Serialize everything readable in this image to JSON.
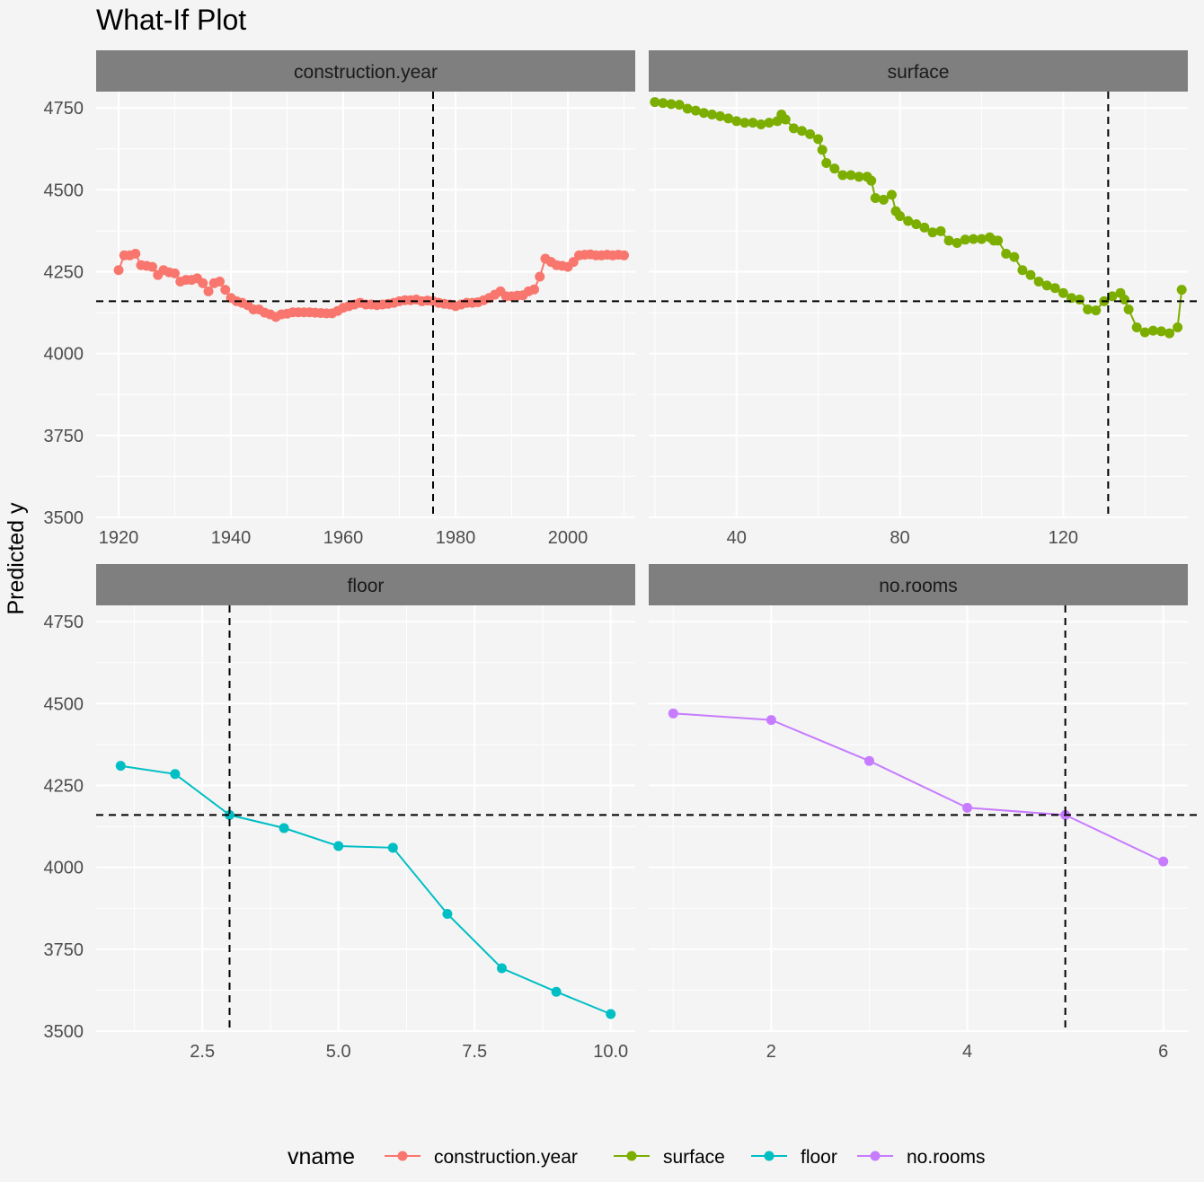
{
  "title": "What-If Plot",
  "ylabel": "Predicted y",
  "legend": {
    "title": "vname"
  },
  "reference": {
    "y": 4160
  },
  "chart_data": {
    "type": "line",
    "title": "What-If Plot",
    "ylabel": "Predicted y",
    "ylim": [
      3500,
      4800
    ],
    "yticks": [
      3500,
      3750,
      4000,
      4250,
      4500,
      4750
    ],
    "grid": true,
    "legend_position": "bottom",
    "reference_y": 4160,
    "facets": [
      {
        "name": "construction.year",
        "color": "#F8766D",
        "xlim": [
          1916,
          2012
        ],
        "xticks": [
          1920,
          1940,
          1960,
          1980,
          2000
        ],
        "tick_labels": [
          "1920",
          "1940",
          "1960",
          "1980",
          "2000"
        ],
        "reference_x": 1976,
        "x": [
          1920,
          1921,
          1922,
          1923,
          1924,
          1925,
          1926,
          1927,
          1928,
          1929,
          1930,
          1931,
          1932,
          1933,
          1934,
          1935,
          1936,
          1937,
          1938,
          1939,
          1940,
          1941,
          1942,
          1943,
          1944,
          1945,
          1946,
          1947,
          1948,
          1949,
          1950,
          1951,
          1952,
          1953,
          1954,
          1955,
          1956,
          1957,
          1958,
          1959,
          1960,
          1961,
          1962,
          1963,
          1964,
          1965,
          1966,
          1967,
          1968,
          1969,
          1970,
          1971,
          1972,
          1973,
          1974,
          1975,
          1976,
          1977,
          1978,
          1979,
          1980,
          1981,
          1982,
          1983,
          1984,
          1985,
          1986,
          1987,
          1988,
          1989,
          1990,
          1991,
          1992,
          1993,
          1994,
          1995,
          1996,
          1997,
          1998,
          1999,
          2000,
          2001,
          2002,
          2003,
          2004,
          2005,
          2006,
          2007,
          2008,
          2009,
          2010
        ],
        "y": [
          4255,
          4300,
          4300,
          4305,
          4270,
          4268,
          4265,
          4240,
          4255,
          4248,
          4245,
          4220,
          4225,
          4225,
          4230,
          4215,
          4190,
          4215,
          4220,
          4195,
          4170,
          4160,
          4155,
          4148,
          4135,
          4135,
          4125,
          4120,
          4112,
          4120,
          4122,
          4126,
          4126,
          4126,
          4126,
          4125,
          4124,
          4123,
          4123,
          4130,
          4140,
          4145,
          4150,
          4155,
          4150,
          4150,
          4148,
          4150,
          4152,
          4155,
          4160,
          4163,
          4163,
          4165,
          4160,
          4162,
          4160,
          4155,
          4152,
          4150,
          4145,
          4150,
          4155,
          4155,
          4157,
          4163,
          4170,
          4180,
          4190,
          4175,
          4175,
          4177,
          4178,
          4190,
          4196,
          4235,
          4290,
          4280,
          4270,
          4268,
          4265,
          4280,
          4300,
          4302,
          4303,
          4300,
          4300,
          4302,
          4300,
          4302,
          4300
        ]
      },
      {
        "name": "surface",
        "color": "#7CAE00",
        "xlim": [
          18.5,
          150.5
        ],
        "xticks": [
          40,
          80,
          120
        ],
        "tick_labels": [
          "40",
          "80",
          "120"
        ],
        "reference_x": 131,
        "x": [
          20,
          22,
          24,
          26,
          28,
          30,
          32,
          34,
          36,
          38,
          40,
          42,
          44,
          46,
          48,
          50,
          51,
          52,
          54,
          56,
          58,
          60,
          61,
          62,
          64,
          66,
          68,
          70,
          72,
          73,
          74,
          76,
          78,
          79,
          80,
          82,
          84,
          86,
          88,
          90,
          92,
          94,
          96,
          98,
          100,
          102,
          103,
          104,
          106,
          108,
          110,
          112,
          114,
          116,
          118,
          120,
          122,
          124,
          126,
          128,
          130,
          132,
          134,
          135,
          136,
          138,
          140,
          142,
          144,
          146,
          148,
          149
        ],
        "y": [
          4768,
          4765,
          4762,
          4760,
          4748,
          4742,
          4735,
          4730,
          4725,
          4718,
          4710,
          4705,
          4705,
          4700,
          4705,
          4710,
          4730,
          4715,
          4688,
          4680,
          4670,
          4655,
          4622,
          4582,
          4565,
          4545,
          4545,
          4540,
          4540,
          4528,
          4475,
          4470,
          4485,
          4435,
          4420,
          4405,
          4395,
          4385,
          4370,
          4374,
          4345,
          4338,
          4348,
          4350,
          4350,
          4355,
          4345,
          4345,
          4305,
          4295,
          4255,
          4240,
          4220,
          4208,
          4200,
          4185,
          4170,
          4165,
          4135,
          4132,
          4160,
          4175,
          4185,
          4165,
          4135,
          4080,
          4065,
          4070,
          4068,
          4062,
          4080,
          4195
        ]
      },
      {
        "name": "floor",
        "color": "#00BFC4",
        "xlim": [
          0.55,
          10.45
        ],
        "xticks": [
          2.5,
          5.0,
          7.5,
          10.0
        ],
        "tick_labels": [
          "2.5",
          "5.0",
          "7.5",
          "10.0"
        ],
        "reference_x": 3,
        "x": [
          1,
          2,
          3,
          4,
          5,
          6,
          7,
          8,
          9,
          10
        ],
        "y": [
          4310,
          4285,
          4160,
          4120,
          4065,
          4060,
          3858,
          3692,
          3620,
          3552
        ]
      },
      {
        "name": "no.rooms",
        "color": "#C77CFF",
        "xlim": [
          0.75,
          6.25
        ],
        "xticks": [
          2,
          4,
          6
        ],
        "tick_labels": [
          "2",
          "4",
          "6"
        ],
        "reference_x": 5,
        "x": [
          1,
          2,
          3,
          4,
          5,
          6
        ],
        "y": [
          4470,
          4450,
          4325,
          4182,
          4160,
          4018
        ]
      }
    ]
  }
}
